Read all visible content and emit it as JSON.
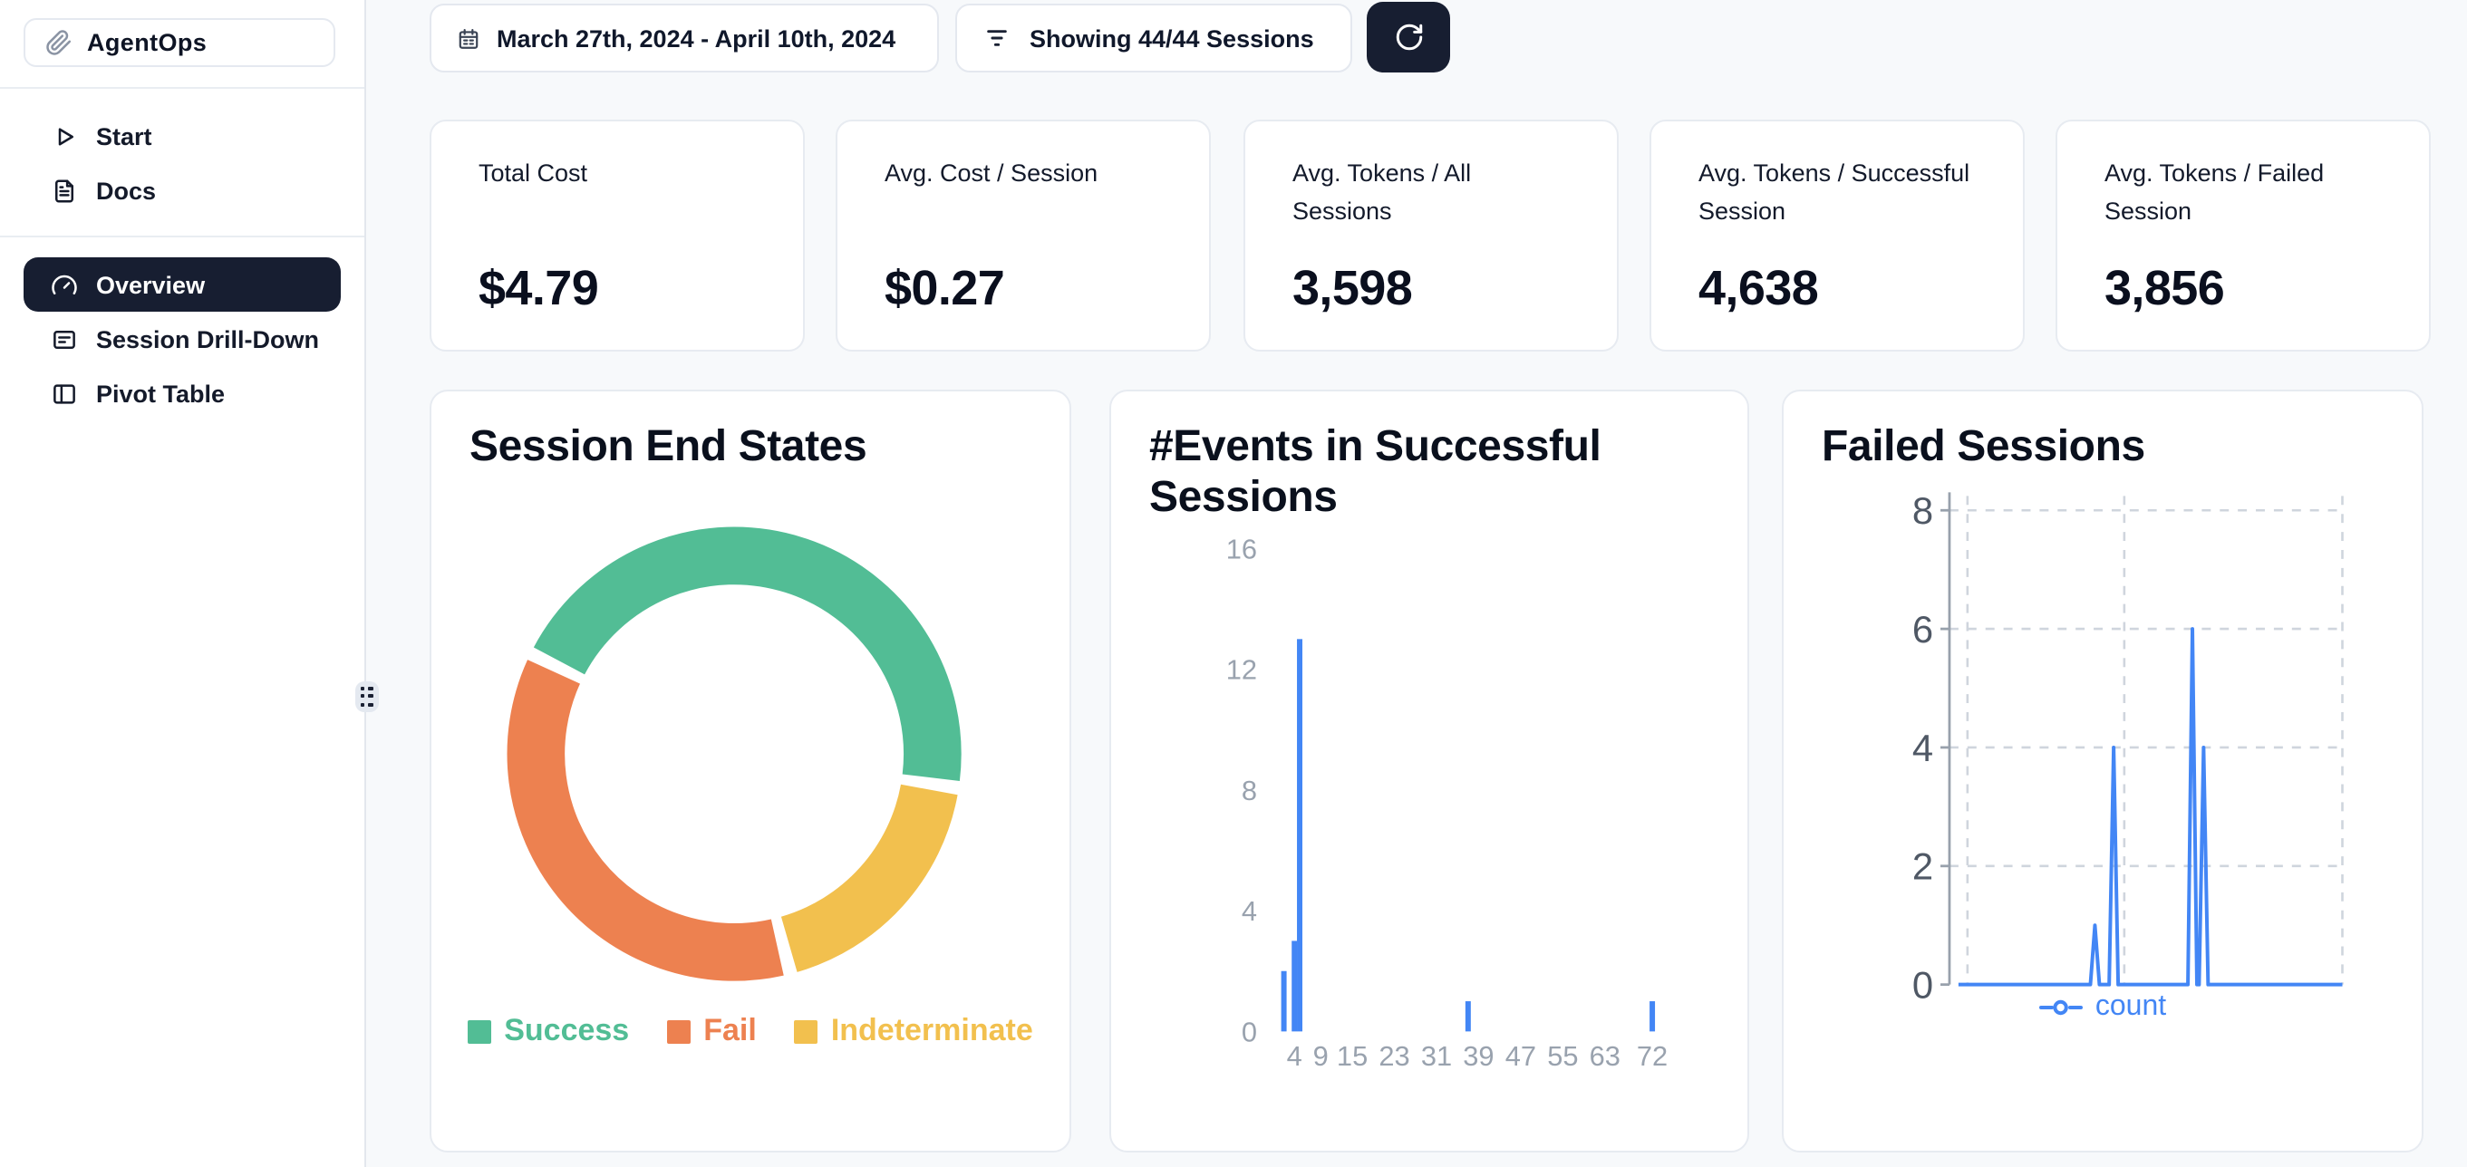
{
  "app": {
    "name": "AgentOps"
  },
  "sidebar": {
    "nav_top": [
      {
        "label": "Start",
        "icon": "play-icon"
      },
      {
        "label": "Docs",
        "icon": "docs-icon"
      }
    ],
    "nav_main": [
      {
        "label": "Overview",
        "icon": "gauge-icon",
        "active": true
      },
      {
        "label": "Session Drill-Down",
        "icon": "list-box-icon",
        "active": false
      },
      {
        "label": "Pivot Table",
        "icon": "panel-columns-icon",
        "active": false
      }
    ]
  },
  "topbar": {
    "date_range": "March 27th, 2024 - April 10th, 2024",
    "date_icon": "calendar-icon",
    "filter_label": "Showing 44/44 Sessions",
    "filter_icon": "filter-lines-icon",
    "refresh_icon": "refresh-icon"
  },
  "stats": [
    {
      "label": "Total Cost",
      "value": "$4.79"
    },
    {
      "label": "Avg. Cost / Session",
      "value": "$0.27"
    },
    {
      "label": "Avg. Tokens / All Sessions",
      "value": "3,598"
    },
    {
      "label": "Avg. Tokens / Successful Session",
      "value": "4,638"
    },
    {
      "label": "Avg. Tokens / Failed Session",
      "value": "3,856"
    }
  ],
  "colors": {
    "accent_dark": "#171E31",
    "blue": "#4386F5",
    "green": "#52BD95",
    "orange": "#ED8150",
    "yellow": "#F2C04E",
    "page_bg": "#F7F9FB"
  },
  "chart_data": [
    {
      "type": "pie",
      "variant": "donut",
      "title": "Session End States",
      "labels": [
        "Success",
        "Fail",
        "Indeterminate"
      ],
      "values": [
        20,
        16,
        8
      ],
      "values_estimated_from_angles": true,
      "total_sessions": 44,
      "colors": [
        "#52BD95",
        "#ED8150",
        "#F2C04E"
      ],
      "legend_position": "bottom"
    },
    {
      "type": "bar",
      "title": "#Events in Successful Sessions",
      "x": [
        2,
        4,
        5,
        37,
        72
      ],
      "counts": [
        2,
        3,
        13,
        1,
        1
      ],
      "x_ticks": [
        4,
        9,
        15,
        23,
        31,
        39,
        47,
        55,
        63,
        72
      ],
      "xlim": [
        0,
        76
      ],
      "ylim": [
        0,
        16
      ],
      "y_ticks": [
        0,
        4,
        8,
        12,
        16
      ],
      "color": "#4386F5",
      "grid": false
    },
    {
      "type": "line",
      "title": "Failed Sessions",
      "series": [
        {
          "name": "count",
          "color": "#4386F5",
          "points": [
            {
              "x": 0.34,
              "y": 1
            },
            {
              "x": 0.39,
              "y": 4
            },
            {
              "x": 0.6,
              "y": 6
            },
            {
              "x": 0.63,
              "y": 4
            }
          ]
        }
      ],
      "x_normalized_0_to_1": true,
      "baseline": 0,
      "ylim": [
        0,
        8
      ],
      "y_ticks": [
        0,
        2,
        4,
        6,
        8
      ],
      "grid": "dashed",
      "legend_position": "bottom"
    }
  ]
}
